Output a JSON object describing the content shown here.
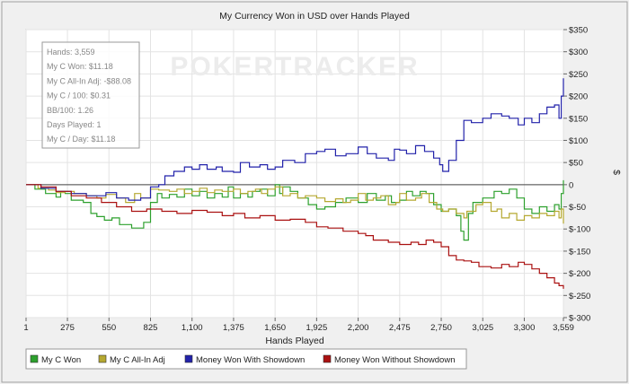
{
  "chart_data": {
    "type": "line",
    "title": "My Currency Won in USD over Hands Played",
    "xlabel": "Hands Played",
    "ylabel": "$",
    "x_ticks": [
      "1",
      "275",
      "550",
      "825",
      "1,100",
      "1,375",
      "1,650",
      "1,925",
      "2,200",
      "2,475",
      "2,750",
      "3,025",
      "3,300",
      "3,559"
    ],
    "x_tick_values": [
      1,
      275,
      550,
      825,
      1100,
      1375,
      1650,
      1925,
      2200,
      2475,
      2750,
      3025,
      3300,
      3559
    ],
    "y_ticks": [
      "$350",
      "$300",
      "$250",
      "$200",
      "$150",
      "$100",
      "$50",
      "0",
      "$-50",
      "$-100",
      "$-150",
      "$-200",
      "$-250",
      "$-300"
    ],
    "y_tick_values": [
      350,
      300,
      250,
      200,
      150,
      100,
      50,
      0,
      -50,
      -100,
      -150,
      -200,
      -250,
      -300
    ],
    "xlim": [
      1,
      3559
    ],
    "ylim": [
      -300,
      350
    ],
    "grid": true,
    "legend_position": "bottom",
    "watermark": "POKERTRACKER",
    "stats_box": [
      "Hands: 3,559",
      "My C Won: $11.18",
      "My C All-In Adj: -$88.08",
      "My C / 100: $0.31",
      "BB/100: 1.26",
      "Days Played: 1",
      "My C / Day: $11.18"
    ],
    "series": [
      {
        "name": "My C Won",
        "color": "#2da02d",
        "points": [
          [
            1,
            0
          ],
          [
            60,
            -10
          ],
          [
            130,
            -20
          ],
          [
            200,
            -28
          ],
          [
            230,
            -15
          ],
          [
            260,
            -20
          ],
          [
            300,
            -35
          ],
          [
            380,
            -40
          ],
          [
            430,
            -65
          ],
          [
            470,
            -72
          ],
          [
            520,
            -80
          ],
          [
            570,
            -75
          ],
          [
            620,
            -90
          ],
          [
            700,
            -98
          ],
          [
            780,
            -85
          ],
          [
            825,
            -40
          ],
          [
            870,
            -20
          ],
          [
            900,
            -30
          ],
          [
            950,
            -22
          ],
          [
            1000,
            -28
          ],
          [
            1050,
            -10
          ],
          [
            1100,
            -25
          ],
          [
            1150,
            -15
          ],
          [
            1200,
            -30
          ],
          [
            1250,
            -20
          ],
          [
            1300,
            -28
          ],
          [
            1340,
            -5
          ],
          [
            1375,
            -30
          ],
          [
            1420,
            -20
          ],
          [
            1470,
            -28
          ],
          [
            1500,
            -15
          ],
          [
            1550,
            -10
          ],
          [
            1600,
            -25
          ],
          [
            1650,
            0
          ],
          [
            1680,
            -20
          ],
          [
            1700,
            -5
          ],
          [
            1750,
            -15
          ],
          [
            1800,
            -30
          ],
          [
            1870,
            -45
          ],
          [
            1925,
            -55
          ],
          [
            1980,
            -50
          ],
          [
            2050,
            -40
          ],
          [
            2120,
            -30
          ],
          [
            2200,
            -40
          ],
          [
            2260,
            -20
          ],
          [
            2320,
            -35
          ],
          [
            2380,
            -25
          ],
          [
            2420,
            -40
          ],
          [
            2475,
            -35
          ],
          [
            2520,
            -15
          ],
          [
            2560,
            -25
          ],
          [
            2610,
            -15
          ],
          [
            2650,
            -20
          ],
          [
            2700,
            -45
          ],
          [
            2750,
            -60
          ],
          [
            2800,
            -55
          ],
          [
            2850,
            -70
          ],
          [
            2880,
            -105
          ],
          [
            2900,
            -125
          ],
          [
            2930,
            -65
          ],
          [
            2960,
            -40
          ],
          [
            3025,
            -30
          ],
          [
            3100,
            -15
          ],
          [
            3150,
            -20
          ],
          [
            3200,
            -10
          ],
          [
            3250,
            -30
          ],
          [
            3300,
            -55
          ],
          [
            3350,
            -65
          ],
          [
            3400,
            -50
          ],
          [
            3450,
            -60
          ],
          [
            3500,
            -45
          ],
          [
            3530,
            -55
          ],
          [
            3545,
            -20
          ],
          [
            3559,
            10
          ]
        ]
      },
      {
        "name": "My C All-In Adj",
        "color": "#b5a830",
        "points": [
          [
            1,
            0
          ],
          [
            80,
            -8
          ],
          [
            150,
            -12
          ],
          [
            200,
            -18
          ],
          [
            260,
            -15
          ],
          [
            320,
            -20
          ],
          [
            400,
            -25
          ],
          [
            470,
            -30
          ],
          [
            530,
            -22
          ],
          [
            600,
            -30
          ],
          [
            660,
            -40
          ],
          [
            720,
            -20
          ],
          [
            760,
            -30
          ],
          [
            825,
            -10
          ],
          [
            880,
            -12
          ],
          [
            950,
            -15
          ],
          [
            1000,
            -10
          ],
          [
            1050,
            -20
          ],
          [
            1100,
            -15
          ],
          [
            1150,
            -8
          ],
          [
            1200,
            -18
          ],
          [
            1250,
            -12
          ],
          [
            1300,
            -15
          ],
          [
            1375,
            -10
          ],
          [
            1420,
            -20
          ],
          [
            1470,
            -15
          ],
          [
            1520,
            -10
          ],
          [
            1560,
            -20
          ],
          [
            1600,
            -10
          ],
          [
            1650,
            -5
          ],
          [
            1700,
            -25
          ],
          [
            1750,
            -20
          ],
          [
            1800,
            -30
          ],
          [
            1850,
            -25
          ],
          [
            1925,
            -30
          ],
          [
            1980,
            -38
          ],
          [
            2050,
            -32
          ],
          [
            2100,
            -40
          ],
          [
            2150,
            -35
          ],
          [
            2200,
            -20
          ],
          [
            2250,
            -35
          ],
          [
            2300,
            -30
          ],
          [
            2350,
            -25
          ],
          [
            2400,
            -45
          ],
          [
            2450,
            -40
          ],
          [
            2475,
            -20
          ],
          [
            2520,
            -35
          ],
          [
            2580,
            -30
          ],
          [
            2620,
            -20
          ],
          [
            2670,
            -40
          ],
          [
            2720,
            -55
          ],
          [
            2760,
            -60
          ],
          [
            2800,
            -55
          ],
          [
            2850,
            -65
          ],
          [
            2900,
            -75
          ],
          [
            2920,
            -60
          ],
          [
            2980,
            -45
          ],
          [
            3025,
            -40
          ],
          [
            3080,
            -60
          ],
          [
            3120,
            -55
          ],
          [
            3150,
            -75
          ],
          [
            3200,
            -65
          ],
          [
            3250,
            -80
          ],
          [
            3300,
            -70
          ],
          [
            3350,
            -75
          ],
          [
            3400,
            -65
          ],
          [
            3450,
            -70
          ],
          [
            3500,
            -60
          ],
          [
            3530,
            -75
          ],
          [
            3545,
            -55
          ],
          [
            3559,
            -88
          ]
        ]
      },
      {
        "name": "Money Won With Showdown",
        "color": "#2222aa",
        "points": [
          [
            1,
            0
          ],
          [
            100,
            -8
          ],
          [
            200,
            -15
          ],
          [
            300,
            -20
          ],
          [
            400,
            -25
          ],
          [
            470,
            -25
          ],
          [
            530,
            -18
          ],
          [
            600,
            -30
          ],
          [
            680,
            -35
          ],
          [
            760,
            -30
          ],
          [
            825,
            -5
          ],
          [
            880,
            0
          ],
          [
            920,
            20
          ],
          [
            980,
            30
          ],
          [
            1050,
            40
          ],
          [
            1100,
            35
          ],
          [
            1150,
            45
          ],
          [
            1200,
            35
          ],
          [
            1260,
            40
          ],
          [
            1300,
            30
          ],
          [
            1375,
            28
          ],
          [
            1420,
            50
          ],
          [
            1480,
            40
          ],
          [
            1550,
            45
          ],
          [
            1600,
            35
          ],
          [
            1650,
            40
          ],
          [
            1700,
            55
          ],
          [
            1780,
            50
          ],
          [
            1850,
            70
          ],
          [
            1925,
            75
          ],
          [
            1980,
            80
          ],
          [
            2050,
            65
          ],
          [
            2120,
            70
          ],
          [
            2200,
            85
          ],
          [
            2260,
            70
          ],
          [
            2320,
            60
          ],
          [
            2400,
            55
          ],
          [
            2440,
            80
          ],
          [
            2475,
            78
          ],
          [
            2520,
            70
          ],
          [
            2580,
            88
          ],
          [
            2640,
            75
          ],
          [
            2700,
            60
          ],
          [
            2740,
            45
          ],
          [
            2760,
            30
          ],
          [
            2800,
            55
          ],
          [
            2850,
            100
          ],
          [
            2900,
            145
          ],
          [
            2950,
            140
          ],
          [
            3025,
            150
          ],
          [
            3080,
            160
          ],
          [
            3150,
            155
          ],
          [
            3200,
            150
          ],
          [
            3260,
            135
          ],
          [
            3300,
            150
          ],
          [
            3350,
            140
          ],
          [
            3400,
            160
          ],
          [
            3450,
            175
          ],
          [
            3500,
            180
          ],
          [
            3530,
            150
          ],
          [
            3545,
            200
          ],
          [
            3559,
            240
          ]
        ]
      },
      {
        "name": "Money Won Without Showdown",
        "color": "#aa1111",
        "points": [
          [
            1,
            0
          ],
          [
            100,
            -5
          ],
          [
            200,
            -15
          ],
          [
            300,
            -25
          ],
          [
            400,
            -30
          ],
          [
            500,
            -40
          ],
          [
            600,
            -50
          ],
          [
            700,
            -60
          ],
          [
            800,
            -55
          ],
          [
            900,
            -60
          ],
          [
            1000,
            -65
          ],
          [
            1100,
            -58
          ],
          [
            1200,
            -62
          ],
          [
            1300,
            -70
          ],
          [
            1375,
            -65
          ],
          [
            1450,
            -75
          ],
          [
            1550,
            -70
          ],
          [
            1650,
            -80
          ],
          [
            1750,
            -78
          ],
          [
            1850,
            -85
          ],
          [
            1925,
            -95
          ],
          [
            2000,
            -98
          ],
          [
            2100,
            -105
          ],
          [
            2200,
            -110
          ],
          [
            2250,
            -115
          ],
          [
            2300,
            -125
          ],
          [
            2350,
            -125
          ],
          [
            2400,
            -130
          ],
          [
            2475,
            -135
          ],
          [
            2550,
            -130
          ],
          [
            2600,
            -135
          ],
          [
            2650,
            -125
          ],
          [
            2700,
            -130
          ],
          [
            2750,
            -140
          ],
          [
            2800,
            -160
          ],
          [
            2850,
            -170
          ],
          [
            2900,
            -172
          ],
          [
            2950,
            -175
          ],
          [
            3000,
            -185
          ],
          [
            3025,
            -185
          ],
          [
            3080,
            -188
          ],
          [
            3150,
            -180
          ],
          [
            3200,
            -185
          ],
          [
            3260,
            -175
          ],
          [
            3300,
            -180
          ],
          [
            3350,
            -190
          ],
          [
            3400,
            -200
          ],
          [
            3450,
            -210
          ],
          [
            3500,
            -222
          ],
          [
            3530,
            -228
          ],
          [
            3559,
            -235
          ]
        ]
      }
    ]
  }
}
